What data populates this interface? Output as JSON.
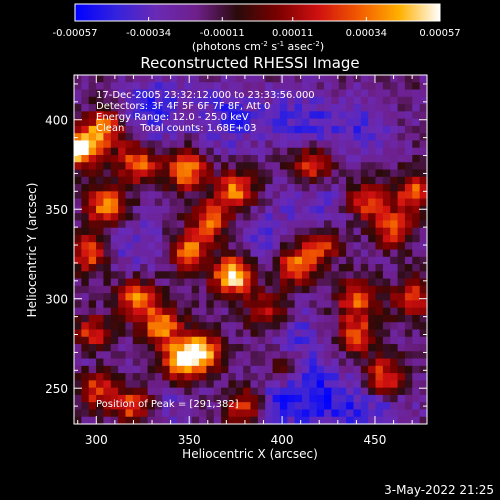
{
  "colorbar": {
    "tick_labels": [
      "-0.00057",
      "-0.00034",
      "-0.00011",
      "0.00011",
      "0.00034",
      "0.00057"
    ],
    "tick_values": [
      -0.00057,
      -0.00034,
      -0.00011,
      0.00011,
      0.00034,
      0.00057
    ],
    "range": [
      -0.00057,
      0.00057
    ],
    "unit_prefix": "(photons cm",
    "unit_exp1": "-2",
    "unit_mid": " s",
    "unit_exp2": "-1",
    "unit_mid2": " asec",
    "unit_exp3": "-2",
    "unit_suffix": ")",
    "colormap": [
      "#0000ff",
      "#3322dd",
      "#6a2ab5",
      "#6e1f8a",
      "#2a0a0a",
      "#7a0000",
      "#d01010",
      "#f25a00",
      "#ffb000",
      "#ffffff"
    ]
  },
  "chart_data": {
    "type": "heatmap",
    "title": "Reconstructed RHESSI Image",
    "xlabel": "Heliocentric X (arcsec)",
    "ylabel": "Heliocentric Y (arcsec)",
    "xlim": [
      288,
      478
    ],
    "ylim": [
      230,
      425
    ],
    "xticks": [
      300,
      350,
      400,
      450
    ],
    "yticks": [
      250,
      300,
      350,
      400
    ],
    "xtick_labels": [
      "300",
      "350",
      "400",
      "450"
    ],
    "ytick_labels": [
      "250",
      "300",
      "350",
      "400"
    ],
    "annotations": [
      "17-Dec-2005 23:32:12.000 to 23:33:56.000",
      "Detectors: 3F 4F 5F 6F 7F 8F, Att 0",
      "Energy Range: 12.0 - 25.0 keV",
      "Clean     Total counts: 1.68E+03"
    ],
    "peak_label": "Position of Peak = [291,382]",
    "peak_position": [
      291,
      382
    ],
    "grid_size": 48,
    "bright_sources": [
      {
        "x": 291,
        "y": 384,
        "v": 1.0
      },
      {
        "x": 305,
        "y": 395,
        "v": 0.62
      },
      {
        "x": 322,
        "y": 376,
        "v": 0.6
      },
      {
        "x": 348,
        "y": 372,
        "v": 0.72
      },
      {
        "x": 375,
        "y": 360,
        "v": 0.65
      },
      {
        "x": 305,
        "y": 352,
        "v": 0.7
      },
      {
        "x": 296,
        "y": 325,
        "v": 0.55
      },
      {
        "x": 322,
        "y": 300,
        "v": 0.6
      },
      {
        "x": 350,
        "y": 327,
        "v": 0.6
      },
      {
        "x": 374,
        "y": 313,
        "v": 1.0
      },
      {
        "x": 356,
        "y": 270,
        "v": 0.85
      },
      {
        "x": 345,
        "y": 265,
        "v": 0.7
      },
      {
        "x": 335,
        "y": 285,
        "v": 0.65
      },
      {
        "x": 300,
        "y": 250,
        "v": 0.5
      },
      {
        "x": 320,
        "y": 240,
        "v": 0.55
      },
      {
        "x": 392,
        "y": 292,
        "v": 0.45
      },
      {
        "x": 407,
        "y": 318,
        "v": 0.6
      },
      {
        "x": 420,
        "y": 330,
        "v": 0.55
      },
      {
        "x": 460,
        "y": 340,
        "v": 0.55
      },
      {
        "x": 472,
        "y": 360,
        "v": 0.55
      },
      {
        "x": 440,
        "y": 280,
        "v": 0.5
      },
      {
        "x": 455,
        "y": 256,
        "v": 0.55
      },
      {
        "x": 440,
        "y": 300,
        "v": 0.5
      },
      {
        "x": 470,
        "y": 300,
        "v": 0.45
      },
      {
        "x": 416,
        "y": 375,
        "v": 0.55
      },
      {
        "x": 445,
        "y": 355,
        "v": 0.5
      },
      {
        "x": 362,
        "y": 344,
        "v": 0.55
      },
      {
        "x": 402,
        "y": 262,
        "v": 0.5
      },
      {
        "x": 380,
        "y": 240,
        "v": 0.45
      },
      {
        "x": 297,
        "y": 280,
        "v": 0.55
      }
    ],
    "dark_sources": [
      {
        "x": 330,
        "y": 405,
        "v": -0.85
      },
      {
        "x": 372,
        "y": 402,
        "v": -0.75
      },
      {
        "x": 410,
        "y": 400,
        "v": -0.7
      },
      {
        "x": 440,
        "y": 395,
        "v": -0.6
      },
      {
        "x": 420,
        "y": 350,
        "v": -0.55
      },
      {
        "x": 410,
        "y": 258,
        "v": -0.75
      },
      {
        "x": 430,
        "y": 240,
        "v": -0.7
      },
      {
        "x": 400,
        "y": 240,
        "v": -0.65
      },
      {
        "x": 388,
        "y": 335,
        "v": -0.55
      },
      {
        "x": 320,
        "y": 330,
        "v": -0.5
      },
      {
        "x": 405,
        "y": 280,
        "v": -0.5
      },
      {
        "x": 338,
        "y": 240,
        "v": -0.35
      },
      {
        "x": 292,
        "y": 270,
        "v": -0.4
      },
      {
        "x": 455,
        "y": 235,
        "v": -0.5
      }
    ]
  },
  "footer": {
    "date": "3-May-2022 21:25"
  }
}
